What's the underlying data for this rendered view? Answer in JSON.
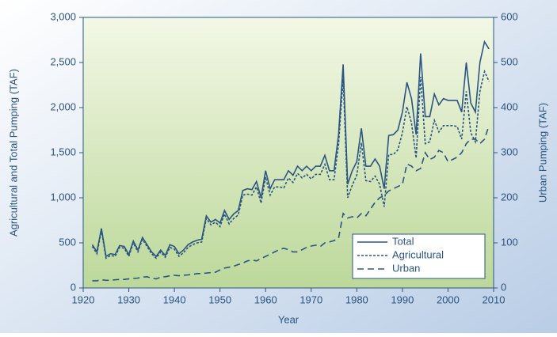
{
  "chart_data": {
    "type": "line",
    "y_label": "Agricultural and Total Pumping (TAF)",
    "y2_label": "Urban Pumping (TAF)",
    "x_label": "Year",
    "x": [
      1922,
      1923,
      1924,
      1925,
      1926,
      1927,
      1928,
      1929,
      1930,
      1931,
      1932,
      1933,
      1934,
      1935,
      1936,
      1937,
      1938,
      1939,
      1940,
      1941,
      1942,
      1943,
      1944,
      1945,
      1946,
      1947,
      1948,
      1949,
      1950,
      1951,
      1952,
      1953,
      1954,
      1955,
      1956,
      1957,
      1958,
      1959,
      1960,
      1961,
      1962,
      1963,
      1964,
      1965,
      1966,
      1967,
      1968,
      1969,
      1970,
      1971,
      1972,
      1973,
      1974,
      1975,
      1976,
      1977,
      1978,
      1979,
      1980,
      1981,
      1982,
      1983,
      1984,
      1985,
      1986,
      1987,
      1988,
      1989,
      1990,
      1991,
      1992,
      1993,
      1994,
      1995,
      1996,
      1997,
      1998,
      1999,
      2000,
      2001,
      2002,
      2003,
      2004,
      2005,
      2006,
      2007,
      2008,
      2009
    ],
    "series": [
      {
        "name": "Total",
        "color": "#2b5582",
        "dash": "solid",
        "values": [
          480,
          400,
          660,
          350,
          380,
          370,
          470,
          460,
          370,
          520,
          420,
          560,
          480,
          400,
          350,
          420,
          360,
          480,
          460,
          380,
          420,
          480,
          510,
          530,
          540,
          800,
          730,
          760,
          720,
          860,
          760,
          820,
          860,
          1080,
          1100,
          1090,
          1180,
          1000,
          1300,
          1100,
          1200,
          1200,
          1200,
          1300,
          1250,
          1350,
          1300,
          1350,
          1300,
          1350,
          1350,
          1470,
          1300,
          1300,
          1700,
          2480,
          1150,
          1300,
          1400,
          1770,
          1350,
          1350,
          1430,
          1350,
          1100,
          1690,
          1700,
          1750,
          1950,
          2280,
          2100,
          1700,
          2600,
          1900,
          1900,
          2150,
          2030,
          2100,
          2080,
          2080,
          2080,
          1950,
          2500,
          2050,
          1950,
          2500,
          2730,
          2650
        ]
      },
      {
        "name": "Agricultural",
        "color": "#2b5582",
        "dash": "dotted",
        "values": [
          460,
          380,
          640,
          330,
          360,
          350,
          450,
          440,
          350,
          500,
          400,
          540,
          460,
          380,
          330,
          400,
          340,
          450,
          430,
          350,
          390,
          450,
          480,
          500,
          510,
          770,
          700,
          730,
          680,
          820,
          710,
          770,
          810,
          1030,
          1040,
          1030,
          1120,
          940,
          1230,
          1030,
          1120,
          1120,
          1110,
          1220,
          1170,
          1270,
          1220,
          1260,
          1210,
          1260,
          1260,
          1370,
          1200,
          1200,
          1590,
          2320,
          1000,
          1140,
          1250,
          1610,
          1190,
          1180,
          1240,
          1150,
          900,
          1480,
          1480,
          1530,
          1720,
          2010,
          1830,
          1440,
          2340,
          1600,
          1620,
          1860,
          1730,
          1800,
          1800,
          1800,
          1790,
          1650,
          2180,
          1720,
          1620,
          2180,
          2400,
          2290
        ]
      },
      {
        "name": "Urban",
        "color": "#2b5582",
        "dash": "dashed",
        "axis": "y2",
        "values": [
          16,
          16,
          18,
          17,
          17,
          18,
          19,
          19,
          20,
          21,
          22,
          24,
          25,
          22,
          20,
          24,
          25,
          27,
          28,
          27,
          28,
          29,
          30,
          32,
          32,
          33,
          34,
          35,
          40,
          44,
          46,
          48,
          52,
          55,
          60,
          62,
          60,
          65,
          70,
          75,
          80,
          85,
          88,
          85,
          80,
          80,
          85,
          90,
          93,
          95,
          92,
          100,
          102,
          105,
          110,
          165,
          155,
          158,
          155,
          165,
          160,
          175,
          190,
          200,
          205,
          215,
          220,
          225,
          230,
          275,
          270,
          260,
          265,
          300,
          285,
          290,
          305,
          300,
          280,
          285,
          290,
          300,
          320,
          330,
          330,
          320,
          330,
          360
        ]
      }
    ],
    "xlim": [
      1920,
      2010
    ],
    "xticks": [
      1920,
      1930,
      1940,
      1950,
      1960,
      1970,
      1980,
      1990,
      2000,
      2010
    ],
    "ylim": [
      0,
      3000
    ],
    "yticks": [
      0,
      500,
      {
        "value": 1000,
        "label": "1,000"
      },
      {
        "value": 1500,
        "label": "1,500"
      },
      {
        "value": 2000,
        "label": "2,000"
      },
      {
        "value": 2500,
        "label": "2,500"
      },
      {
        "value": 3000,
        "label": "3,000"
      }
    ],
    "y2lim": [
      0,
      600
    ],
    "y2ticks": [
      0,
      100,
      200,
      300,
      400,
      500,
      600
    ],
    "legend": "lower right"
  }
}
